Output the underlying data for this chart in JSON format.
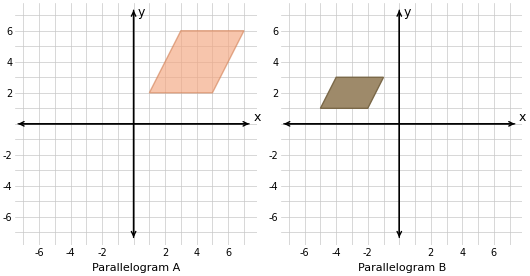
{
  "para_a_vertices": [
    [
      1,
      2
    ],
    [
      3,
      6
    ],
    [
      7,
      6
    ],
    [
      5,
      2
    ]
  ],
  "para_b_vertices": [
    [
      -5,
      1
    ],
    [
      -4,
      3
    ],
    [
      -1,
      3
    ],
    [
      -2,
      1
    ]
  ],
  "para_a_facecolor": "#f4a680",
  "para_a_edgecolor": "#d4845a",
  "para_b_facecolor": "#9e8a6a",
  "para_b_edgecolor": "#7a6848",
  "para_a_alpha": 0.65,
  "para_b_alpha": 1.0,
  "xlim": [
    -7.5,
    7.8
  ],
  "ylim": [
    -7.8,
    7.8
  ],
  "xticks": [
    -6,
    -4,
    -2,
    2,
    4,
    6
  ],
  "yticks": [
    -6,
    -4,
    -2,
    2,
    4,
    6
  ],
  "label_a": "Parallelogram A",
  "label_b": "Parallelogram B",
  "grid_color": "#c8c8c8",
  "axis_color": "#000000",
  "bg_color": "#ffffff",
  "label_fontsize": 8,
  "tick_fontsize": 7,
  "axis_label_fontsize": 9,
  "arrow_lw": 1.0,
  "grid_lw": 0.5
}
